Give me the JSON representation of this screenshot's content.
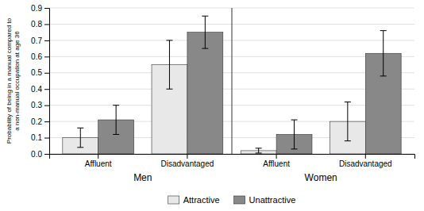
{
  "chart_data": {
    "type": "bar",
    "ylabel": "Probability of being in a manual compared to\na non-manual occupation at age 36",
    "categories": [
      "Affluent",
      "Disadvantaged",
      "Affluent",
      "Disadvantaged"
    ],
    "group_labels": [
      "Men",
      "Women"
    ],
    "series": [
      {
        "name": "Attractive",
        "color": "#e8e8e8",
        "values": [
          0.1,
          0.55,
          0.02,
          0.2
        ],
        "errors": [
          0.06,
          0.15,
          0.015,
          0.12
        ]
      },
      {
        "name": "Unattractive",
        "color": "#888888",
        "values": [
          0.21,
          0.75,
          0.12,
          0.62
        ],
        "errors": [
          0.09,
          0.1,
          0.09,
          0.14
        ]
      }
    ],
    "ylim": [
      0,
      0.9
    ],
    "yticks": [
      {
        "value": 0,
        "label": "0.0"
      },
      0.1,
      0.2,
      0.3,
      0.4,
      0.5,
      0.6,
      0.7,
      0.8,
      0.9
    ],
    "grid": true
  }
}
